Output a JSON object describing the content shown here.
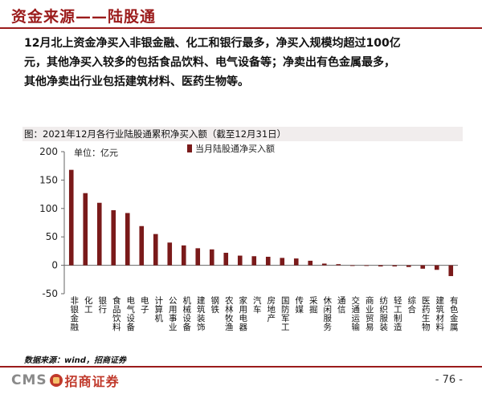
{
  "header": {
    "title": "资金来源——陆股通",
    "summary_lines": [
      "12月北上资金净买入非银金融、化工和银行最多，净买入规模均超过100亿",
      "元，其他净买入较多的包括食品饮料、电气设备等；净卖出有色金属最多，",
      "其他净卖出行业包括建筑材料、医药生物等。"
    ]
  },
  "figure": {
    "caption": "图：2021年12月各行业陆股通累积净买入额（截至12月31日）",
    "unit_label": "单位：亿元",
    "source": "数据来源：wind，招商证券"
  },
  "footer": {
    "logo_latin": "CMS",
    "logo_cn": "招商证券",
    "page": "- 76 -"
  },
  "colors": {
    "accent": "#9b1b1b",
    "bar": "#7a1a1a"
  },
  "chart_data": {
    "type": "bar",
    "title": "图：2021年12月各行业陆股通累积净买入额（截至12月31日）",
    "xlabel": "",
    "ylabel": "单位：亿元",
    "ylim": [
      -50,
      200
    ],
    "yticks": [
      200,
      150,
      100,
      50,
      0,
      -50
    ],
    "grid": false,
    "legend_position": "top-center",
    "categories": [
      "非银金融",
      "化工",
      "银行",
      "食品饮料",
      "电气设备",
      "电子",
      "计算机",
      "公用事业",
      "机械设备",
      "建筑装饰",
      "钢铁",
      "农林牧渔",
      "家用电器",
      "汽车",
      "房地产",
      "国防军工",
      "传媒",
      "采掘",
      "休闲服务",
      "通信",
      "交通运输",
      "商业贸易",
      "纺织服装",
      "轻工制造",
      "综合",
      "医药生物",
      "建筑材料",
      "有色金属"
    ],
    "series": [
      {
        "name": "当月陆股通净买入额",
        "values": [
          168,
          127,
          110,
          97,
          92,
          69,
          55,
          40,
          35,
          30,
          28,
          22,
          17,
          16,
          15,
          13,
          12,
          8,
          3,
          2,
          -1,
          -1,
          -2,
          -2,
          -3,
          -6,
          -8,
          -19
        ]
      }
    ]
  }
}
